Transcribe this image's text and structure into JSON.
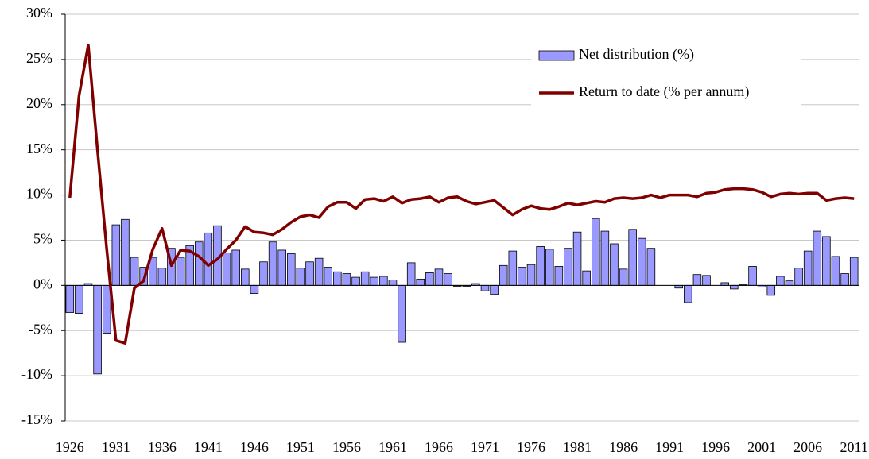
{
  "chart_data": {
    "type": "bar-line",
    "categories": [
      "1926",
      null,
      null,
      null,
      null,
      "1931",
      null,
      null,
      null,
      null,
      "1936",
      null,
      null,
      null,
      null,
      "1941",
      null,
      null,
      null,
      null,
      "1946",
      null,
      null,
      null,
      null,
      "1951",
      null,
      null,
      null,
      null,
      "1956",
      null,
      null,
      null,
      null,
      "1961",
      null,
      null,
      null,
      null,
      "1966",
      null,
      null,
      null,
      null,
      "1971",
      null,
      null,
      null,
      null,
      "1976",
      null,
      null,
      null,
      null,
      "1981",
      null,
      null,
      null,
      null,
      "1986",
      null,
      null,
      null,
      null,
      "1991",
      null,
      null,
      null,
      null,
      "1996",
      null,
      null,
      null,
      null,
      "2001",
      null,
      null,
      null,
      null,
      "2006",
      null,
      null,
      null,
      null,
      "2011"
    ],
    "series": [
      {
        "name": "Net distribution (%)",
        "type": "bar",
        "color": "#9999ff",
        "values": [
          -3.0,
          -3.1,
          0.2,
          -9.8,
          -5.3,
          6.7,
          7.3,
          3.1,
          2.0,
          3.1,
          1.9,
          4.1,
          3.1,
          4.4,
          4.8,
          5.8,
          6.6,
          3.6,
          3.9,
          1.8,
          -0.9,
          2.6,
          4.8,
          3.9,
          3.5,
          1.9,
          2.6,
          3.0,
          2.0,
          1.5,
          1.3,
          0.9,
          1.5,
          0.9,
          1.0,
          0.6,
          -6.3,
          2.5,
          0.7,
          1.4,
          1.8,
          1.3,
          -0.1,
          -0.1,
          0.2,
          -0.6,
          -1.0,
          2.2,
          3.8,
          2.0,
          2.3,
          4.3,
          4.0,
          2.1,
          4.1,
          5.9,
          1.6,
          7.4,
          6.0,
          4.6,
          1.8,
          6.2,
          5.2,
          4.1,
          0,
          0,
          -0.3,
          -1.9,
          1.2,
          1.1,
          0,
          0.3,
          -0.4,
          0.1,
          2.1,
          -0.2,
          -1.1,
          1.0,
          0.5,
          1.9,
          3.8,
          6.0,
          5.4,
          3.2,
          1.3,
          3.1
        ]
      },
      {
        "name": "Return to date (% per annum)",
        "type": "line",
        "color": "#800000",
        "values": [
          9.7,
          21,
          26.6,
          15,
          4,
          -6.1,
          -6.4,
          -0.3,
          0.5,
          4.0,
          6.3,
          2.2,
          3.9,
          3.8,
          3.2,
          2.2,
          2.9,
          4.0,
          5.0,
          6.5,
          5.9,
          5.8,
          5.6,
          6.2,
          7.0,
          7.6,
          7.8,
          7.5,
          8.7,
          9.2,
          9.2,
          8.5,
          9.5,
          9.6,
          9.3,
          9.8,
          9.1,
          9.5,
          9.6,
          9.8,
          9.2,
          9.7,
          9.8,
          9.3,
          9.0,
          9.2,
          9.4,
          8.6,
          7.8,
          8.4,
          8.8,
          8.5,
          8.4,
          8.7,
          9.1,
          8.9,
          9.1,
          9.3,
          9.2,
          9.6,
          9.7,
          9.6,
          9.7,
          10.0,
          9.7,
          10.0,
          10.0,
          10.0,
          9.8,
          10.2,
          10.3,
          10.6,
          10.7,
          10.7,
          10.6,
          10.3,
          9.8,
          10.1,
          10.2,
          10.1,
          10.2,
          10.2,
          9.4,
          9.6,
          9.7,
          9.6
        ]
      }
    ],
    "ylim": [
      -15,
      30
    ],
    "yticks": [
      {
        "value": -15,
        "label": "-15%"
      },
      {
        "value": -10,
        "label": "-10%"
      },
      {
        "value": -5,
        "label": "-5%"
      },
      {
        "value": 0,
        "label": "0%"
      },
      {
        "value": 5,
        "label": "5%"
      },
      {
        "value": 10,
        "label": "10%"
      },
      {
        "value": 15,
        "label": "15%"
      },
      {
        "value": 20,
        "label": "20%"
      },
      {
        "value": 25,
        "label": "25%"
      },
      {
        "value": 30,
        "label": "30%"
      }
    ],
    "grid": true,
    "legend": "top-right"
  }
}
